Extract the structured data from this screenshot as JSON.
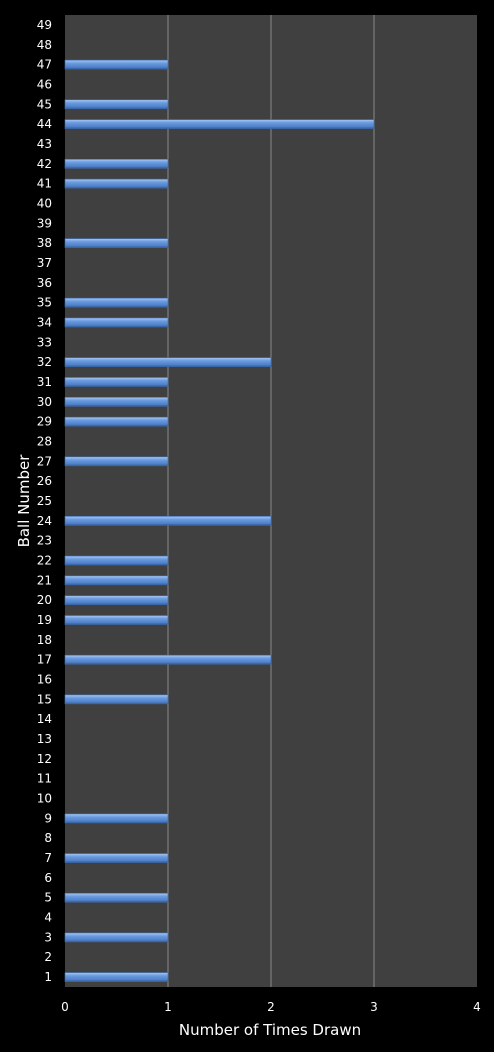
{
  "chart_data": {
    "type": "bar",
    "orientation": "horizontal",
    "xlabel": "Number of Times Drawn",
    "ylabel": "Ball Number",
    "xlim": [
      0,
      4
    ],
    "xticks": [
      "0",
      "1",
      "2",
      "3",
      "4"
    ],
    "grid": "vertical gridlines",
    "legend": "none",
    "colors": {
      "background": "#000000",
      "plot_area": "#404040",
      "bar": "#5b8fd6",
      "gridline": "#8a8a8a",
      "text": "#ffffff"
    },
    "categories": [
      "1",
      "2",
      "3",
      "4",
      "5",
      "6",
      "7",
      "8",
      "9",
      "10",
      "11",
      "12",
      "13",
      "14",
      "15",
      "16",
      "17",
      "18",
      "19",
      "20",
      "21",
      "22",
      "23",
      "24",
      "25",
      "26",
      "27",
      "28",
      "29",
      "30",
      "31",
      "32",
      "33",
      "34",
      "35",
      "36",
      "37",
      "38",
      "39",
      "40",
      "41",
      "42",
      "43",
      "44",
      "45",
      "46",
      "47",
      "48",
      "49"
    ],
    "values": [
      1,
      0,
      1,
      0,
      1,
      0,
      1,
      0,
      1,
      0,
      0,
      0,
      0,
      0,
      1,
      0,
      2,
      0,
      1,
      1,
      1,
      1,
      0,
      2,
      0,
      0,
      1,
      0,
      1,
      1,
      1,
      2,
      0,
      1,
      1,
      0,
      0,
      1,
      0,
      0,
      1,
      1,
      0,
      3,
      1,
      0,
      1,
      0,
      0
    ]
  }
}
